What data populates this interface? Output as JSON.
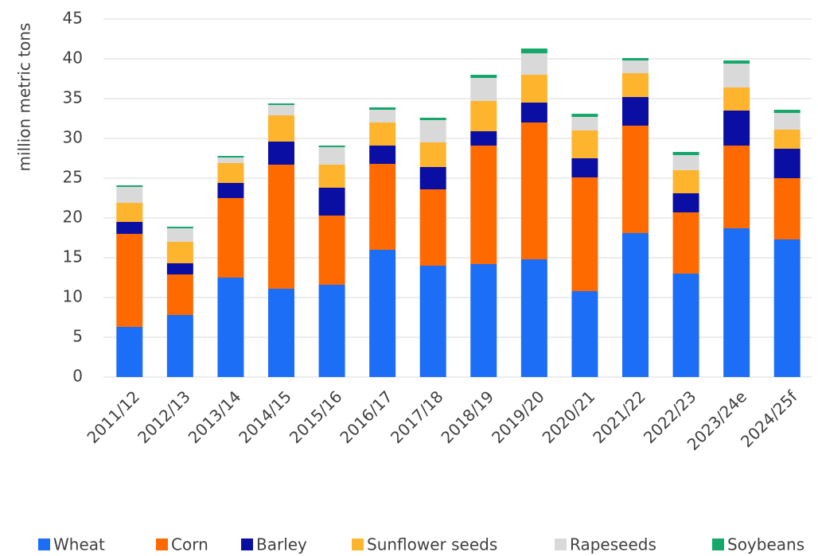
{
  "chart_data": {
    "type": "stacked-bar",
    "ylabel": "million metric tons",
    "categories": [
      "2011/12",
      "2012/13",
      "2013/14",
      "2014/15",
      "2015/16",
      "2016/17",
      "2017/18",
      "2018/19",
      "2019/20",
      "2020/21",
      "2021/22",
      "2022/23",
      "2023/24e",
      "2024/25f"
    ],
    "series": [
      {
        "name": "Wheat",
        "color": "#1c6ef7",
        "values": [
          6.3,
          7.8,
          12.5,
          11.1,
          11.6,
          16.0,
          14.0,
          14.2,
          14.8,
          10.8,
          18.1,
          13.0,
          18.7,
          17.3
        ]
      },
      {
        "name": "Corn",
        "color": "#ff6a00",
        "values": [
          11.7,
          5.1,
          10.0,
          15.6,
          8.7,
          10.8,
          9.6,
          14.9,
          17.2,
          14.3,
          13.5,
          7.7,
          10.4,
          7.7
        ]
      },
      {
        "name": "Barley",
        "color": "#0b0ea3",
        "values": [
          1.5,
          1.4,
          1.9,
          2.9,
          3.5,
          2.3,
          2.8,
          1.8,
          2.5,
          2.4,
          3.6,
          2.4,
          4.4,
          3.7
        ]
      },
      {
        "name": "Sunflower seeds",
        "color": "#ffb42e",
        "values": [
          2.4,
          2.7,
          2.5,
          3.3,
          2.9,
          2.9,
          3.1,
          3.8,
          3.5,
          3.5,
          3.0,
          2.9,
          2.9,
          2.4
        ]
      },
      {
        "name": "Rapeseeds",
        "color": "#d9d9d9",
        "values": [
          2.0,
          1.7,
          0.7,
          1.3,
          2.2,
          1.6,
          2.8,
          2.9,
          2.7,
          1.7,
          1.6,
          1.9,
          3.0,
          2.1
        ]
      },
      {
        "name": "Soybeans",
        "color": "#14a86b",
        "values": [
          0.2,
          0.2,
          0.2,
          0.2,
          0.2,
          0.3,
          0.3,
          0.4,
          0.6,
          0.4,
          0.3,
          0.4,
          0.4,
          0.4
        ]
      }
    ],
    "ylim": [
      0,
      45
    ],
    "yticks": [
      0,
      5,
      10,
      15,
      20,
      25,
      30,
      35,
      40,
      45
    ],
    "grid": true,
    "legend": "bottom"
  }
}
